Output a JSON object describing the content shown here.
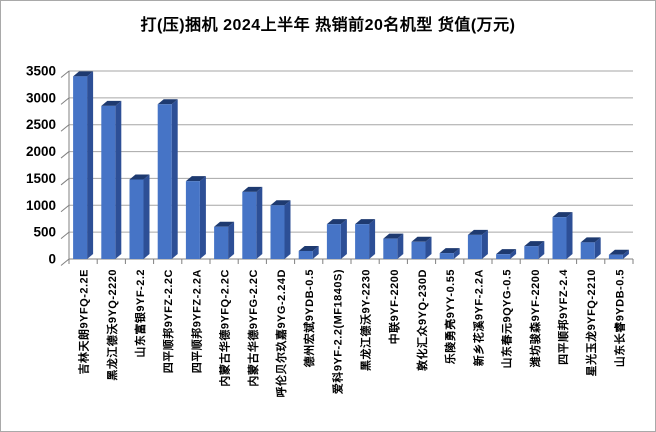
{
  "chart_data": {
    "type": "bar",
    "style": "3d-column",
    "title": "打(压)捆机 2024上半年 热销前20名机型 货值(万元)",
    "xlabel": "",
    "ylabel": "",
    "ylim": [
      0,
      3500
    ],
    "ytick_step": 500,
    "yticks": [
      0,
      500,
      1000,
      1500,
      2000,
      2500,
      3000,
      3500
    ],
    "grid": true,
    "legend": false,
    "categories": [
      "吉林天朗9YFQ-2.2E",
      "黑龙江德沃9YQ-2220",
      "山东富银9YF-2.2",
      "四平顺邦9YFZ-2.2C",
      "四平顺邦9YFZ-2.2A",
      "内蒙古华德9YFQ-2.2C",
      "内蒙古华德9YFG-2.2C",
      "呼伦贝尔玖嘉9YG-2.24D",
      "德州宏斌9YDB-0.5",
      "爱科9YF-2.2(MF1840S)",
      "黑龙江德沃9Y-2230",
      "中联9YF-2200",
      "敦化汇众9YQ-230D",
      "乐陵勇亮9YY-0.55",
      "新乡花溪9YF-2.2A",
      "山东春元9QYG-0.5",
      "潍坊骏森9YF-2200",
      "四平顺邦9YFZ-2.4",
      "星光玉龙9YFQ-2210",
      "山东长睿9YDB-0.5"
    ],
    "values": [
      3400,
      2850,
      1480,
      2880,
      1450,
      600,
      1250,
      1000,
      150,
      650,
      650,
      380,
      320,
      110,
      450,
      90,
      240,
      780,
      310,
      80
    ],
    "colors": {
      "bar_front": "#4674c6",
      "bar_side": "#2d4f96",
      "bar_top": "#1e3a70",
      "gridline": "#a6a6a6",
      "axis": "#808080",
      "text": "#000000",
      "background": "#ffffff",
      "frame": "#a9a9a9"
    }
  }
}
